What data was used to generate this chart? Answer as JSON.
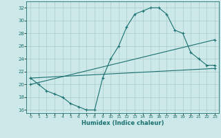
{
  "xlabel": "Humidex (Indice chaleur)",
  "ylabel": "",
  "bg_color": "#cce8e8",
  "grid_color": "#aacccc",
  "line_color": "#1a7070",
  "xlim": [
    -0.5,
    23.5
  ],
  "ylim": [
    15.5,
    33.0
  ],
  "xticks": [
    0,
    1,
    2,
    3,
    4,
    5,
    6,
    7,
    8,
    9,
    10,
    11,
    12,
    13,
    14,
    15,
    16,
    17,
    18,
    19,
    20,
    21,
    22,
    23
  ],
  "yticks": [
    16,
    18,
    20,
    22,
    24,
    26,
    28,
    30,
    32
  ],
  "series1": {
    "x": [
      0,
      1,
      2,
      3,
      4,
      5,
      6,
      7,
      8,
      9,
      10,
      11,
      12,
      13,
      14,
      15,
      16,
      17,
      18,
      19,
      20,
      21,
      22,
      23
    ],
    "y": [
      21,
      20,
      19,
      18.5,
      18,
      17,
      16.5,
      16,
      16,
      21,
      24,
      26,
      29,
      31,
      31.5,
      32,
      32,
      31,
      28.5,
      28,
      25,
      24,
      23,
      23
    ]
  },
  "series2": {
    "x": [
      0,
      23
    ],
    "y": [
      21,
      22.5
    ]
  },
  "series3": {
    "x": [
      0,
      23
    ],
    "y": [
      20,
      27
    ]
  }
}
